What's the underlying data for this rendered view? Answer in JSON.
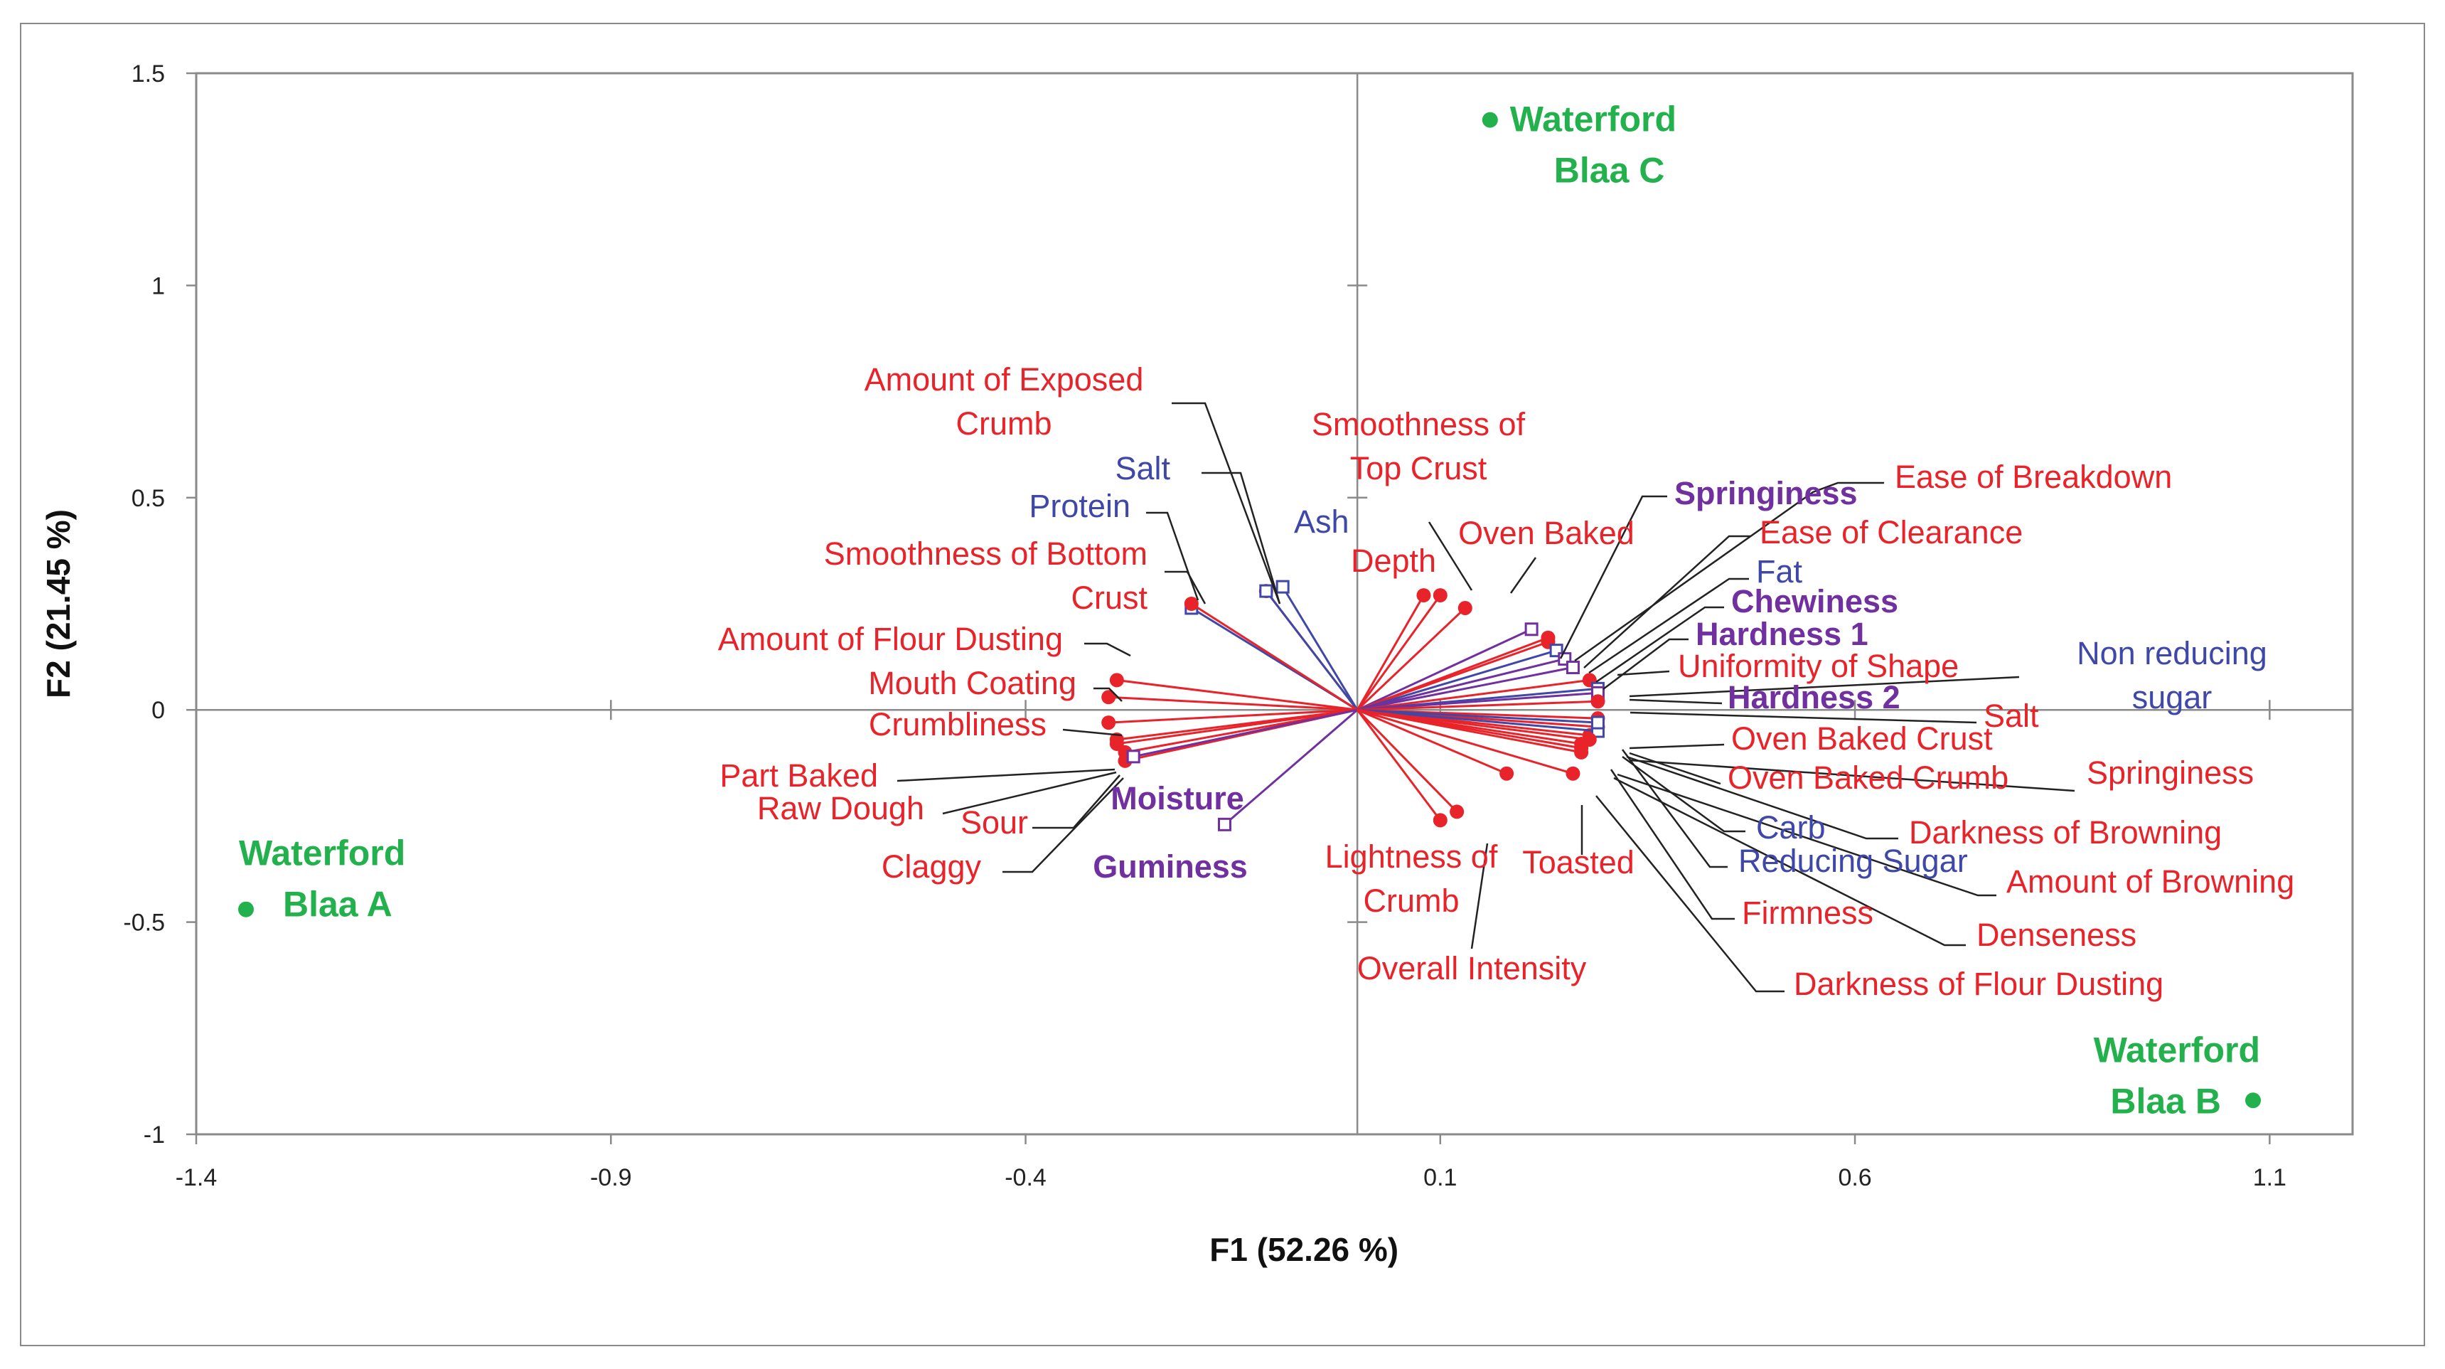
{
  "chart_data": {
    "type": "scatter",
    "subtype": "pca-biplot",
    "title": "",
    "xlabel": "F1 (52.26 %)",
    "ylabel": "F2 (21.45 %)",
    "xlim": [
      -1.4,
      1.2
    ],
    "ylim": [
      -1,
      1.5
    ],
    "x_ticks": [
      "-1.4",
      "-0.9",
      "-0.4",
      "0.1",
      "0.6",
      "1.1"
    ],
    "y_ticks": [
      "1.5",
      "1",
      "0.5",
      "0",
      "-0.5",
      "-1"
    ],
    "colors": {
      "sensory": "#e8232a",
      "composition": "#3f48a8",
      "texture": "#7030a0",
      "observation": "#22b14c",
      "leader": "#222222",
      "axis": "#8a8a8a"
    },
    "observations": [
      {
        "name": "Waterford Blaa A",
        "lines": [
          "Waterford",
          "Blaa A"
        ],
        "x": -1.34,
        "y": -0.47
      },
      {
        "name": "Waterford Blaa B",
        "lines": [
          "Waterford",
          "Blaa B"
        ],
        "x": 1.08,
        "y": -0.92
      },
      {
        "name": "Waterford Blaa C",
        "lines": [
          "Waterford",
          "Blaa C"
        ],
        "x": 0.16,
        "y": 1.39
      }
    ],
    "variables": [
      {
        "lines": [
          "Amount of Exposed",
          "Crumb"
        ],
        "group": "sensory",
        "x": -0.11,
        "y": 0.28
      },
      {
        "lines": [
          "Salt"
        ],
        "group": "composition",
        "x": -0.11,
        "y": 0.28
      },
      {
        "lines": [
          "Protein"
        ],
        "group": "composition",
        "x": -0.2,
        "y": 0.24
      },
      {
        "lines": [
          "Ash"
        ],
        "group": "composition",
        "x": -0.09,
        "y": 0.29
      },
      {
        "lines": [
          "Smoothness of Bottom",
          "Crust"
        ],
        "group": "sensory",
        "x": -0.2,
        "y": 0.25
      },
      {
        "lines": [
          "Amount of Flour Dusting"
        ],
        "group": "sensory",
        "x": -0.29,
        "y": 0.07
      },
      {
        "lines": [
          "Mouth Coating"
        ],
        "group": "sensory",
        "x": -0.3,
        "y": 0.03
      },
      {
        "lines": [
          "Crumbliness"
        ],
        "group": "sensory",
        "x": -0.3,
        "y": -0.03
      },
      {
        "lines": [
          "Part Baked"
        ],
        "group": "sensory",
        "x": -0.29,
        "y": -0.07
      },
      {
        "lines": [
          "Raw Dough"
        ],
        "group": "sensory",
        "x": -0.29,
        "y": -0.08
      },
      {
        "lines": [
          "Sour"
        ],
        "group": "sensory",
        "x": -0.28,
        "y": -0.1
      },
      {
        "lines": [
          "Claggy"
        ],
        "group": "sensory",
        "x": -0.28,
        "y": -0.12
      },
      {
        "lines": [
          "Moisture"
        ],
        "group": "texture",
        "x": -0.27,
        "y": -0.11
      },
      {
        "lines": [
          "Guminess"
        ],
        "group": "texture",
        "x": -0.16,
        "y": -0.27
      },
      {
        "lines": [
          "Smoothness of",
          "Top Crust"
        ],
        "group": "sensory",
        "x": 0.08,
        "y": 0.27
      },
      {
        "lines": [
          "Depth"
        ],
        "group": "sensory",
        "x": 0.1,
        "y": 0.27
      },
      {
        "lines": [
          "Oven Baked"
        ],
        "group": "sensory",
        "x": 0.13,
        "y": 0.24
      },
      {
        "lines": [
          "Lightness of",
          "Crumb"
        ],
        "group": "sensory",
        "x": 0.1,
        "y": -0.26
      },
      {
        "lines": [
          "Overall Intensity"
        ],
        "group": "sensory",
        "x": 0.12,
        "y": -0.24
      },
      {
        "lines": [
          "Toasted"
        ],
        "group": "sensory",
        "x": 0.18,
        "y": -0.15
      },
      {
        "lines": [
          "Springiness"
        ],
        "group": "texture",
        "x": 0.21,
        "y": 0.19
      },
      {
        "lines": [
          "Ease of Breakdown"
        ],
        "group": "sensory",
        "x": 0.23,
        "y": 0.17
      },
      {
        "lines": [
          "Ease of Clearance"
        ],
        "group": "sensory",
        "x": 0.23,
        "y": 0.16
      },
      {
        "lines": [
          "Fat"
        ],
        "group": "composition",
        "x": 0.24,
        "y": 0.14
      },
      {
        "lines": [
          "Chewiness"
        ],
        "group": "texture",
        "x": 0.25,
        "y": 0.12
      },
      {
        "lines": [
          "Hardness 1"
        ],
        "group": "texture",
        "x": 0.26,
        "y": 0.1
      },
      {
        "lines": [
          "Uniformity of Shape"
        ],
        "group": "sensory",
        "x": 0.28,
        "y": 0.07
      },
      {
        "lines": [
          "Non reducing",
          "sugar"
        ],
        "group": "composition",
        "x": 0.29,
        "y": 0.05
      },
      {
        "lines": [
          "Hardness 2"
        ],
        "group": "texture",
        "x": 0.29,
        "y": 0.04
      },
      {
        "lines": [
          "Salt"
        ],
        "group": "sensory",
        "x": 0.29,
        "y": 0.02
      },
      {
        "lines": [
          "Oven Baked Crust"
        ],
        "group": "sensory",
        "x": 0.29,
        "y": -0.02
      },
      {
        "lines": [
          "Oven Baked Crumb"
        ],
        "group": "sensory",
        "x": 0.29,
        "y": -0.04
      },
      {
        "lines": [
          "Springiness"
        ],
        "group": "sensory",
        "x": 0.28,
        "y": -0.06
      },
      {
        "lines": [
          "Carb"
        ],
        "group": "composition",
        "x": 0.29,
        "y": -0.05
      },
      {
        "lines": [
          "Darkness of Browning"
        ],
        "group": "sensory",
        "x": 0.28,
        "y": -0.07
      },
      {
        "lines": [
          "Reducing Sugar"
        ],
        "group": "composition",
        "x": 0.29,
        "y": -0.03
      },
      {
        "lines": [
          "Amount of Browning"
        ],
        "group": "sensory",
        "x": 0.27,
        "y": -0.08
      },
      {
        "lines": [
          "Firmness"
        ],
        "group": "sensory",
        "x": 0.27,
        "y": -0.09
      },
      {
        "lines": [
          "Denseness"
        ],
        "group": "sensory",
        "x": 0.27,
        "y": -0.1
      },
      {
        "lines": [
          "Darkness of Flour Dusting"
        ],
        "group": "sensory",
        "x": 0.26,
        "y": -0.15
      }
    ]
  }
}
